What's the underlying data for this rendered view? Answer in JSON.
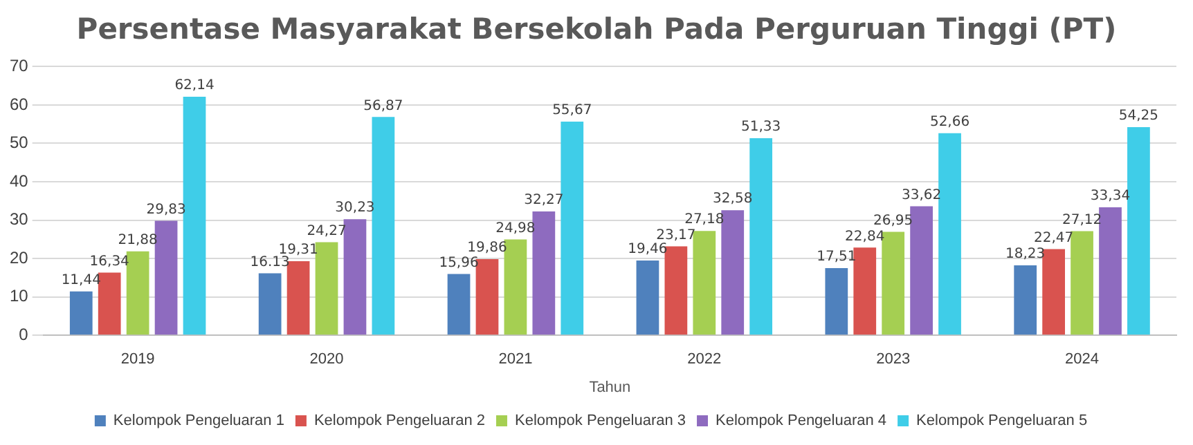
{
  "chart_data": {
    "type": "bar",
    "title": "Persentase Masyarakat Bersekolah Pada Perguruan Tinggi (PT)",
    "xlabel": "Tahun",
    "categories": [
      "2019",
      "2020",
      "2021",
      "2022",
      "2023",
      "2024"
    ],
    "series": [
      {
        "name": "Kelompok Pengeluaran 1",
        "color": "#4f81bd",
        "values": [
          11.44,
          16.13,
          15.96,
          19.46,
          17.51,
          18.23
        ],
        "value_labels": [
          "11,44",
          "16.13",
          "15,96",
          "19,46",
          "17,51",
          "18,23"
        ]
      },
      {
        "name": "Kelompok Pengeluaran 2",
        "color": "#d9534f",
        "values": [
          16.34,
          19.31,
          19.86,
          23.17,
          22.84,
          22.47
        ],
        "value_labels": [
          "16,34",
          "19,31",
          "19,86",
          "23,17",
          "22,84",
          "22,47"
        ]
      },
      {
        "name": "Kelompok Pengeluaran 3",
        "color": "#a5cf52",
        "values": [
          21.88,
          24.27,
          24.98,
          27.18,
          26.95,
          27.12
        ],
        "value_labels": [
          "21,88",
          "24,27",
          "24,98",
          "27,18",
          "26,95",
          "27,12"
        ]
      },
      {
        "name": "Kelompok Pengeluaran 4",
        "color": "#8e6bbf",
        "values": [
          29.83,
          30.23,
          32.27,
          32.58,
          33.62,
          33.34
        ],
        "value_labels": [
          "29,83",
          "30,23",
          "32,27",
          "32,58",
          "33,62",
          "33,34"
        ]
      },
      {
        "name": "Kelompok Pengeluaran 5",
        "color": "#3fcde8",
        "values": [
          62.14,
          56.87,
          55.67,
          51.33,
          52.66,
          54.25
        ],
        "value_labels": [
          "62,14",
          "56,87",
          "55,67",
          "51,33",
          "52,66",
          "54,25"
        ]
      }
    ],
    "ylim": [
      0,
      70
    ],
    "yticks": [
      0,
      10,
      20,
      30,
      40,
      50,
      60,
      70
    ],
    "grid": "y",
    "legend": "bottom"
  }
}
